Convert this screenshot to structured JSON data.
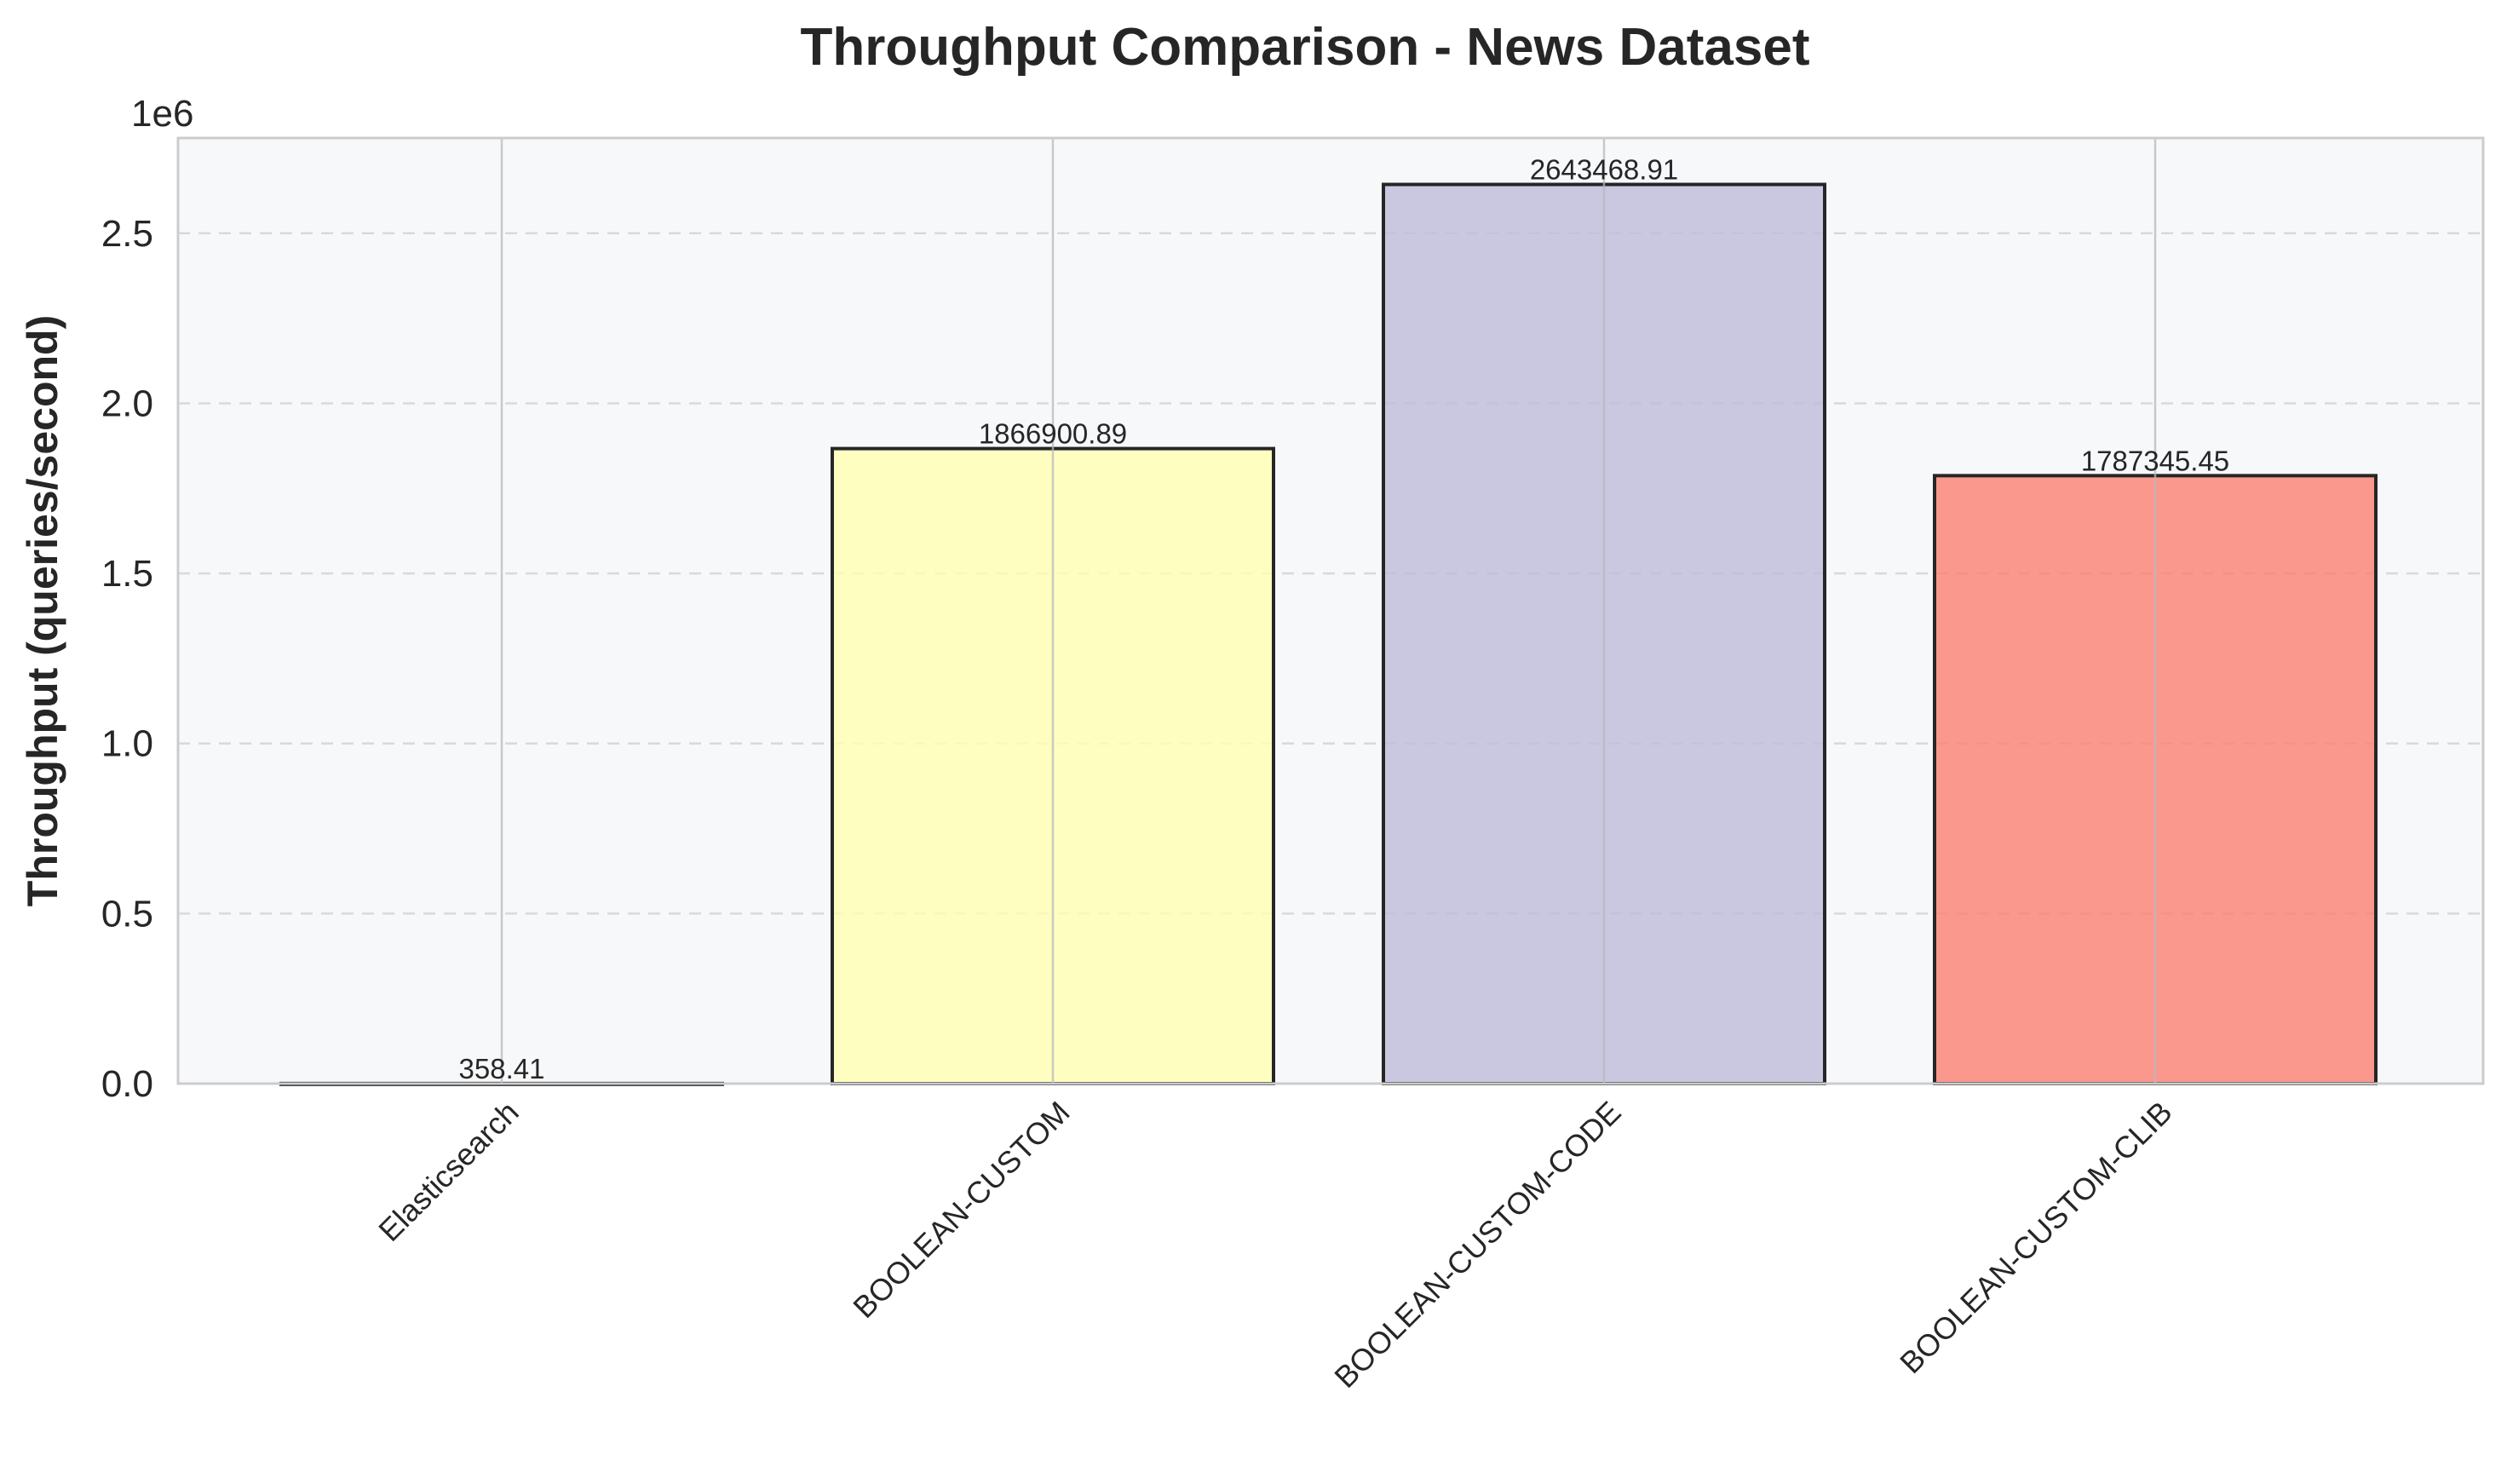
{
  "chart_data": {
    "type": "bar",
    "title": "Throughput Comparison - News Dataset",
    "xlabel": "",
    "ylabel": "Throughput (queries/second)",
    "y_offset_label": "1e6",
    "categories": [
      "Elasticsearch",
      "BOOLEAN-CUSTOM",
      "BOOLEAN-CUSTOM-CODE",
      "BOOLEAN-CUSTOM-CLIB"
    ],
    "values": [
      358.41,
      1866900.89,
      2643468.91,
      1787345.45
    ],
    "value_labels": [
      "358.41",
      "1866900.89",
      "2643468.91",
      "1787345.45"
    ],
    "colors": [
      "#8dd3c7",
      "#ffffb3",
      "#bebada",
      "#fb8072"
    ],
    "ylim": [
      0,
      2780000
    ],
    "yticks": [
      0,
      500000,
      1000000,
      1500000,
      2000000,
      2500000
    ],
    "ytick_labels": [
      "0.0",
      "0.5",
      "1.0",
      "1.5",
      "2.0",
      "2.5"
    ],
    "grid": "y-dashed",
    "legend": "none"
  }
}
